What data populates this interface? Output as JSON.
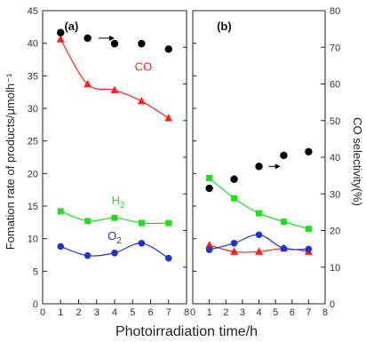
{
  "chart_data": {
    "type": "line",
    "xlabel": "Photoirradiation time/h",
    "ylabel_left": "Fomation rate of products/μmolh⁻¹",
    "ylabel_right": "CO selectivity(%)",
    "ylim_left": [
      0,
      45
    ],
    "ylim_right": [
      0,
      80
    ],
    "yticks_left": [
      "0",
      "5",
      "10",
      "15",
      "20",
      "25",
      "30",
      "35",
      "40",
      "45"
    ],
    "yticks_right": [
      "0",
      "10",
      "20",
      "30",
      "40",
      "50",
      "60",
      "70",
      "80"
    ],
    "grid": false,
    "colors": {
      "CO": "#ff2020",
      "H2": "#22dd22",
      "O2": "#2233cc",
      "selectivity": "#000000"
    },
    "panels": [
      {
        "label": "(a)",
        "xlim": [
          0,
          8
        ],
        "xticks": [
          "0",
          "1",
          "2",
          "3",
          "4",
          "5",
          "6",
          "7",
          "8"
        ],
        "x": [
          1,
          2.5,
          4,
          5.5,
          7
        ],
        "series": [
          {
            "key": "CO",
            "marker": "triangle",
            "values": [
              40.6,
              33.7,
              32.8,
              31.1,
              28.5
            ]
          },
          {
            "key": "H2",
            "marker": "square",
            "values": [
              14.2,
              12.7,
              13.2,
              12.4,
              12.4
            ]
          },
          {
            "key": "O2",
            "marker": "circle",
            "values": [
              8.8,
              7.4,
              7.8,
              9.3,
              7.0
            ]
          }
        ],
        "selectivity": [
          74,
          72.5,
          71,
          71,
          69.5
        ],
        "annotations": [
          {
            "text": "CO",
            "x": 5.6,
            "y": 35.8,
            "color": "#ff2020"
          },
          {
            "text": "H",
            "sub": "2",
            "x": 4.2,
            "y": 15.3,
            "color": "#22dd22"
          },
          {
            "text": "O",
            "sub": "2",
            "x": 4.0,
            "y": 9.8,
            "color": "#2233cc"
          }
        ],
        "arrow": {
          "x_from": 3.1,
          "x_to": 4.0,
          "y": 72.5
        }
      },
      {
        "label": "(b)",
        "xlim": [
          0,
          8
        ],
        "xticks": [
          "0",
          "1",
          "2",
          "3",
          "4",
          "5",
          "6",
          "7",
          "8"
        ],
        "x": [
          1,
          2.5,
          4,
          5.5,
          7
        ],
        "series": [
          {
            "key": "CO",
            "marker": "triangle",
            "values": [
              9.0,
              8.0,
              8.0,
              8.5,
              8.0
            ]
          },
          {
            "key": "H2",
            "marker": "square",
            "values": [
              19.3,
              16.2,
              13.9,
              12.6,
              11.5
            ]
          },
          {
            "key": "O2",
            "marker": "circle",
            "values": [
              8.3,
              9.3,
              10.6,
              8.5,
              8.4
            ]
          }
        ],
        "selectivity": [
          31.5,
          34,
          37.5,
          40.5,
          41.5
        ],
        "annotations": [],
        "arrow": {
          "x_from": 4.6,
          "x_to": 5.3,
          "y": 37.5
        }
      }
    ]
  }
}
